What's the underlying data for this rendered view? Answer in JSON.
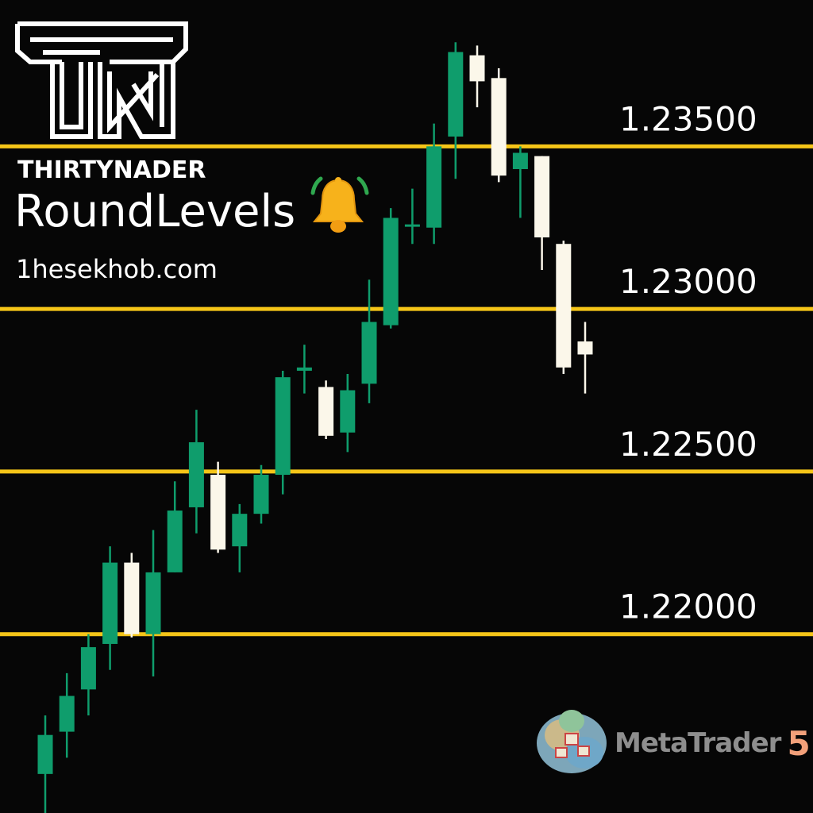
{
  "brand": {
    "name": "THIRTYNADER",
    "logo_icon": "tn-monogram-logo-icon"
  },
  "header": {
    "title": "RoundLevels",
    "bell_icon": "alarm-bell-icon",
    "website": "1hesekhob.com"
  },
  "platform": {
    "icon": "metatrader-globe-icon",
    "name": "MetaTrader",
    "version": "5"
  },
  "colors": {
    "background": "#060606",
    "level_line": "#f5c518",
    "bull_candle": "#0f9d6c",
    "bear_candle": "#fbf7ea",
    "level_label": "#ffffff"
  },
  "chart_data": {
    "type": "candlestick",
    "levels": [
      {
        "value": 1.235,
        "label": "1.23500"
      },
      {
        "value": 1.23,
        "label": "1.23000"
      },
      {
        "value": 1.225,
        "label": "1.22500"
      },
      {
        "value": 1.22,
        "label": "1.22000"
      }
    ],
    "ylim": [
      1.2145,
      1.2395
    ],
    "grid": false,
    "candles": [
      {
        "o": 1.2157,
        "h": 1.2175,
        "l": 1.2145,
        "c": 1.2169
      },
      {
        "o": 1.217,
        "h": 1.2188,
        "l": 1.2162,
        "c": 1.2181
      },
      {
        "o": 1.2183,
        "h": 1.22,
        "l": 1.2175,
        "c": 1.2196
      },
      {
        "o": 1.2197,
        "h": 1.2227,
        "l": 1.2189,
        "c": 1.2222
      },
      {
        "o": 1.2222,
        "h": 1.2225,
        "l": 1.2199,
        "c": 1.22
      },
      {
        "o": 1.22,
        "h": 1.2232,
        "l": 1.2187,
        "c": 1.2219
      },
      {
        "o": 1.2219,
        "h": 1.2247,
        "l": 1.2219,
        "c": 1.2238
      },
      {
        "o": 1.2239,
        "h": 1.2269,
        "l": 1.2231,
        "c": 1.2259
      },
      {
        "o": 1.2249,
        "h": 1.2253,
        "l": 1.2225,
        "c": 1.2226
      },
      {
        "o": 1.2227,
        "h": 1.224,
        "l": 1.2219,
        "c": 1.2237
      },
      {
        "o": 1.2237,
        "h": 1.2252,
        "l": 1.2234,
        "c": 1.2249
      },
      {
        "o": 1.2249,
        "h": 1.2281,
        "l": 1.2243,
        "c": 1.2279
      },
      {
        "o": 1.2281,
        "h": 1.2289,
        "l": 1.2274,
        "c": 1.2282
      },
      {
        "o": 1.2276,
        "h": 1.2278,
        "l": 1.226,
        "c": 1.2261
      },
      {
        "o": 1.2262,
        "h": 1.228,
        "l": 1.2256,
        "c": 1.2275
      },
      {
        "o": 1.2277,
        "h": 1.2309,
        "l": 1.2271,
        "c": 1.2296
      },
      {
        "o": 1.2295,
        "h": 1.2331,
        "l": 1.2294,
        "c": 1.2328
      },
      {
        "o": 1.2326,
        "h": 1.2337,
        "l": 1.232,
        "c": 1.2326
      },
      {
        "o": 1.2325,
        "h": 1.2357,
        "l": 1.232,
        "c": 1.235
      },
      {
        "o": 1.2353,
        "h": 1.2382,
        "l": 1.234,
        "c": 1.2379
      },
      {
        "o": 1.2378,
        "h": 1.2381,
        "l": 1.2362,
        "c": 1.237
      },
      {
        "o": 1.2371,
        "h": 1.2374,
        "l": 1.2339,
        "c": 1.2341
      },
      {
        "o": 1.2343,
        "h": 1.235,
        "l": 1.2328,
        "c": 1.2348
      },
      {
        "o": 1.2347,
        "h": 1.2347,
        "l": 1.2312,
        "c": 1.2322
      },
      {
        "o": 1.232,
        "h": 1.2321,
        "l": 1.228,
        "c": 1.2282
      },
      {
        "o": 1.229,
        "h": 1.2296,
        "l": 1.2274,
        "c": 1.2286
      }
    ]
  }
}
